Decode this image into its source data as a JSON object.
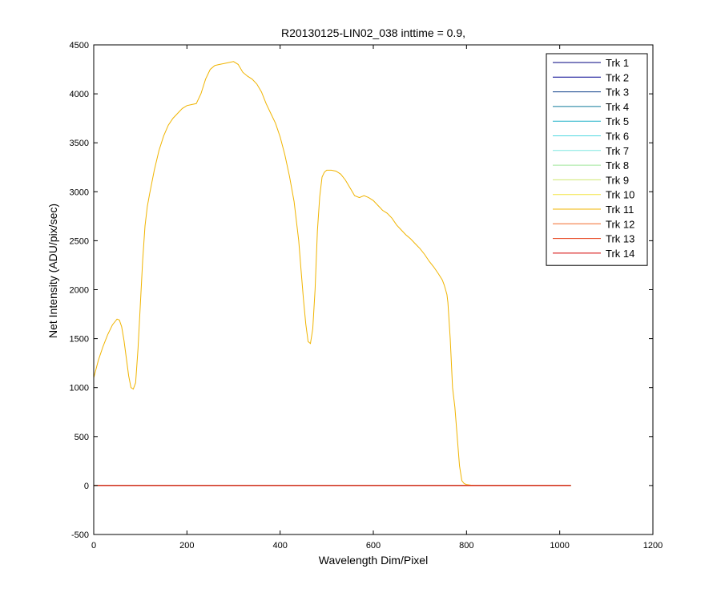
{
  "chart_data": {
    "type": "line",
    "title": "R20130125-LIN02_038 inttime = 0.9,",
    "xlabel": "Wavelength Dim/Pixel",
    "ylabel": "Net Intensity (ADU/pix/sec)",
    "xlim": [
      0,
      1200
    ],
    "ylim": [
      -500,
      4500
    ],
    "xticks": [
      0,
      200,
      400,
      600,
      800,
      1000,
      1200
    ],
    "yticks": [
      -500,
      0,
      500,
      1000,
      1500,
      2000,
      2500,
      3000,
      3500,
      4000,
      4500
    ],
    "grid": false,
    "legend_position": "top-right",
    "series": [
      {
        "name": "Trk 1",
        "color": "#00007f",
        "x": [
          0,
          1024
        ],
        "y": [
          0,
          0
        ]
      },
      {
        "name": "Trk 2",
        "color": "#00008f",
        "x": [
          0,
          1024
        ],
        "y": [
          0,
          0
        ]
      },
      {
        "name": "Trk 3",
        "color": "#0d3f8a",
        "x": [
          0,
          1024
        ],
        "y": [
          0,
          0
        ]
      },
      {
        "name": "Trk 4",
        "color": "#0f7a9a",
        "x": [
          0,
          1024
        ],
        "y": [
          0,
          0
        ]
      },
      {
        "name": "Trk 5",
        "color": "#20b2c8",
        "x": [
          0,
          1024
        ],
        "y": [
          0,
          0
        ]
      },
      {
        "name": "Trk 6",
        "color": "#4fd8e0",
        "x": [
          0,
          1024
        ],
        "y": [
          0,
          0
        ]
      },
      {
        "name": "Trk 7",
        "color": "#7fe8e0",
        "x": [
          0,
          1024
        ],
        "y": [
          0,
          0
        ]
      },
      {
        "name": "Trk 8",
        "color": "#9fe89a",
        "x": [
          0,
          1024
        ],
        "y": [
          0,
          0
        ]
      },
      {
        "name": "Trk 9",
        "color": "#cfe870",
        "x": [
          0,
          1024
        ],
        "y": [
          0,
          0
        ]
      },
      {
        "name": "Trk 10",
        "color": "#f2e43a",
        "x": [
          0,
          1024
        ],
        "y": [
          0,
          0
        ]
      },
      {
        "name": "Trk 11",
        "color": "#f0b400",
        "x": [
          0,
          10,
          20,
          30,
          40,
          50,
          55,
          60,
          65,
          70,
          75,
          80,
          85,
          90,
          95,
          100,
          105,
          110,
          115,
          120,
          130,
          140,
          150,
          160,
          170,
          180,
          190,
          200,
          210,
          220,
          230,
          240,
          250,
          260,
          270,
          280,
          290,
          300,
          310,
          320,
          330,
          340,
          350,
          360,
          370,
          380,
          390,
          400,
          410,
          420,
          430,
          440,
          445,
          450,
          455,
          460,
          465,
          470,
          475,
          480,
          485,
          490,
          495,
          500,
          510,
          520,
          530,
          540,
          550,
          560,
          570,
          580,
          590,
          600,
          610,
          620,
          630,
          640,
          650,
          660,
          670,
          680,
          690,
          700,
          710,
          720,
          730,
          740,
          748,
          752,
          755,
          758,
          760,
          765,
          770,
          775,
          780,
          785,
          790,
          795,
          800,
          810,
          820,
          1024
        ],
        "y": [
          1100,
          1280,
          1420,
          1540,
          1640,
          1700,
          1690,
          1620,
          1480,
          1300,
          1120,
          1000,
          985,
          1050,
          1400,
          1850,
          2300,
          2650,
          2850,
          2980,
          3220,
          3420,
          3570,
          3680,
          3750,
          3800,
          3850,
          3880,
          3890,
          3900,
          4000,
          4150,
          4250,
          4290,
          4300,
          4310,
          4320,
          4330,
          4300,
          4220,
          4180,
          4150,
          4100,
          4020,
          3900,
          3800,
          3700,
          3560,
          3380,
          3160,
          2900,
          2500,
          2200,
          1900,
          1650,
          1470,
          1450,
          1600,
          2000,
          2600,
          2950,
          3150,
          3200,
          3220,
          3220,
          3210,
          3180,
          3120,
          3040,
          2960,
          2940,
          2960,
          2940,
          2910,
          2860,
          2810,
          2780,
          2730,
          2660,
          2610,
          2560,
          2520,
          2470,
          2420,
          2360,
          2290,
          2230,
          2160,
          2100,
          2050,
          2000,
          1950,
          1870,
          1500,
          1000,
          800,
          500,
          200,
          50,
          20,
          10,
          3,
          0,
          0
        ]
      },
      {
        "name": "Trk 12",
        "color": "#f26a2a",
        "x": [
          0,
          1024
        ],
        "y": [
          0,
          0
        ]
      },
      {
        "name": "Trk 13",
        "color": "#e43a10",
        "x": [
          0,
          1024
        ],
        "y": [
          0,
          0
        ]
      },
      {
        "name": "Trk 14",
        "color": "#d40000",
        "x": [
          0,
          1024
        ],
        "y": [
          0,
          0
        ]
      }
    ]
  }
}
